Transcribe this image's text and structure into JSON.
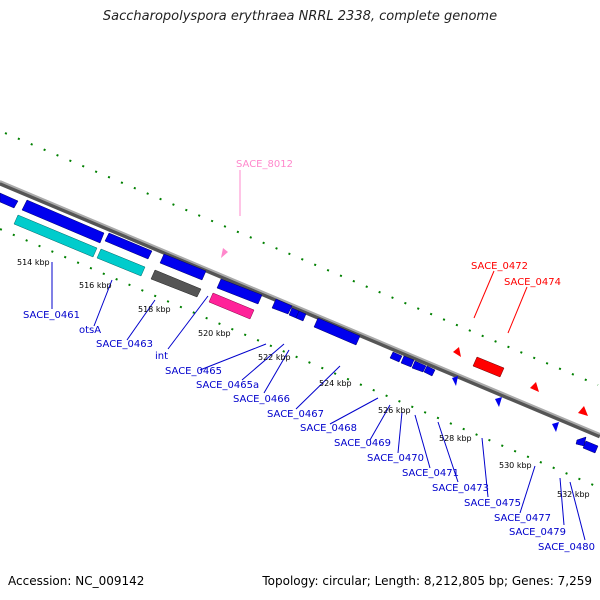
{
  "title": "Saccharopolyspora erythraea NRRL 2338, complete genome",
  "accession": "Accession: NC_009142",
  "topology": "Topology: circular; Length: 8,212,805 bp; Genes: 7,259",
  "colors": {
    "forward_gene": "#ff0000",
    "reverse_gene": "#0000ff",
    "rrna": "#00c8c8",
    "pseudo": "#555555",
    "misc": "#ff3399",
    "highlight": "#ff88cc",
    "backbone": "#808080",
    "ticks": "#008000"
  },
  "kbp_ticks": [
    "514 kbp",
    "516 kbp",
    "518 kbp",
    "520 kbp",
    "522 kbp",
    "524 kbp",
    "526 kbp",
    "528 kbp",
    "530 kbp",
    "532 kbp"
  ],
  "labels": {
    "sace_8012": "SACE_8012",
    "sace_0472": "SACE_0472",
    "sace_0474": "SACE_0474",
    "blue": [
      "SACE_0461",
      "otsA",
      "SACE_0463",
      "int",
      "SACE_0465",
      "SACE_0465a",
      "SACE_0466",
      "SACE_0467",
      "SACE_0468",
      "SACE_0469",
      "SACE_0470",
      "SACE_0471",
      "SACE_0473",
      "SACE_0475",
      "SACE_0477",
      "SACE_0479",
      "SACE_0480"
    ]
  }
}
